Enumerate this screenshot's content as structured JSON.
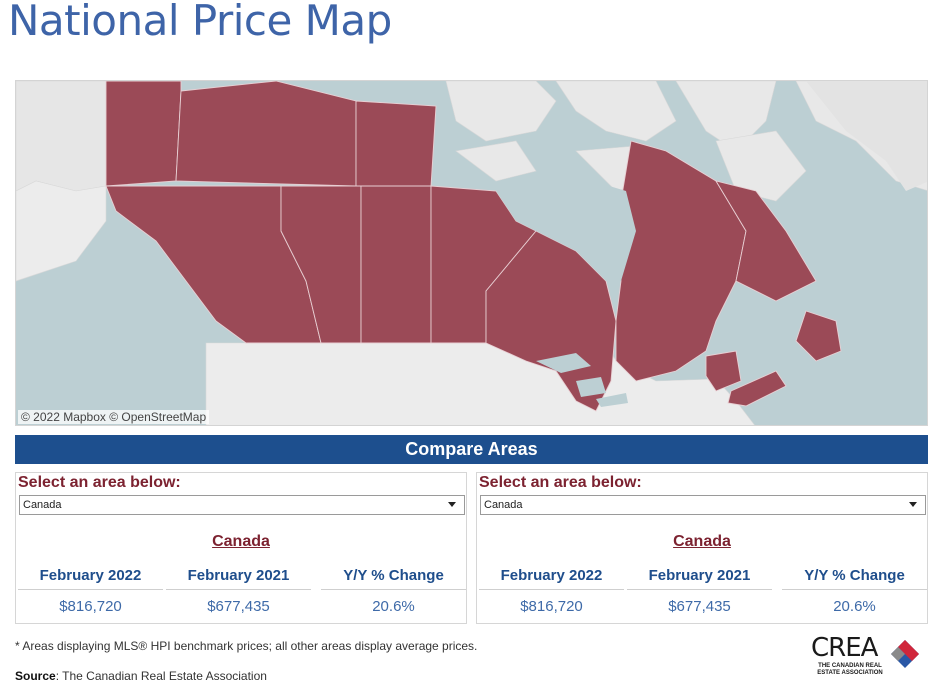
{
  "header": {
    "title": "National Price Map"
  },
  "map": {
    "attribution": "© 2022 Mapbox  © OpenStreetMap"
  },
  "compare": {
    "title": "Compare Areas"
  },
  "panels": [
    {
      "select_label": "Select an area below:",
      "selected": "Canada",
      "area_name": "Canada",
      "columns": [
        "February 2022",
        "February 2021",
        "Y/Y % Change"
      ],
      "values": [
        "$816,720",
        "$677,435",
        "20.6%"
      ]
    },
    {
      "select_label": "Select an area below:",
      "selected": "Canada",
      "area_name": "Canada",
      "columns": [
        "February 2022",
        "February 2021",
        "Y/Y % Change"
      ],
      "values": [
        "$816,720",
        "$677,435",
        "20.6%"
      ]
    }
  ],
  "footer": {
    "note": "* Areas displaying MLS® HPI benchmark prices; all other areas display average prices.",
    "source_label": "Source",
    "source_text": ": The Canadian Real Estate Association"
  },
  "logo": {
    "name": "CREA",
    "subtitle": "THE CANADIAN REAL ESTATE ASSOCIATION"
  },
  "colors": {
    "title": "#3e64a8",
    "region_fill": "#9b4a57",
    "bar": "#1d4f8e",
    "accent": "#7c2230"
  }
}
